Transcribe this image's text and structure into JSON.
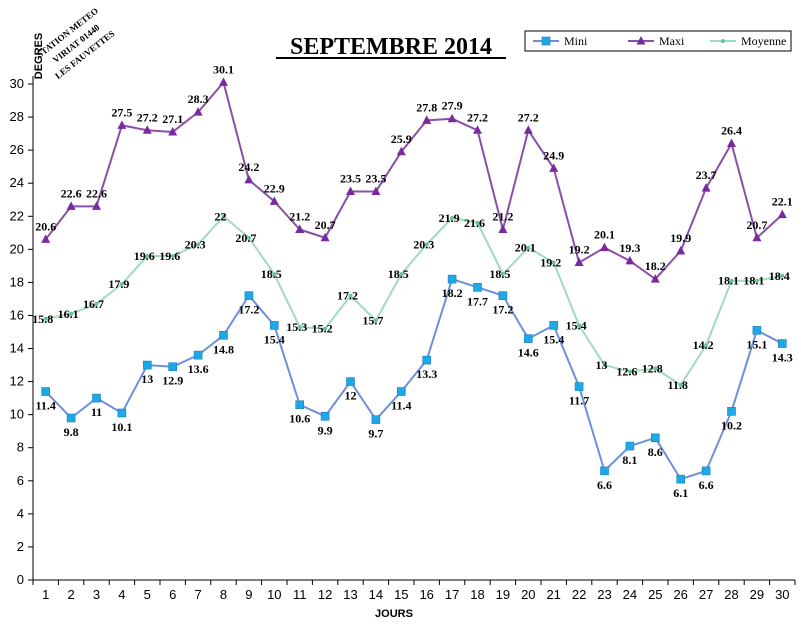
{
  "chart_data": {
    "type": "line",
    "title": "SEPTEMBRE 2014",
    "xlabel": "JOURS",
    "ylabel": "DEGRES",
    "ylim": [
      0,
      30
    ],
    "yticks": [
      0,
      2,
      4,
      6,
      8,
      10,
      12,
      14,
      16,
      18,
      20,
      22,
      24,
      26,
      28,
      30
    ],
    "x": [
      1,
      2,
      3,
      4,
      5,
      6,
      7,
      8,
      9,
      10,
      11,
      12,
      13,
      14,
      15,
      16,
      17,
      18,
      19,
      20,
      21,
      22,
      23,
      24,
      25,
      26,
      27,
      28,
      29,
      30
    ],
    "grid": false,
    "legend_position": "top-right",
    "series": [
      {
        "name": "Mini",
        "color": "#6f8fdc",
        "marker": "square",
        "marker_color": "#1ea9e6",
        "values": [
          11.4,
          9.8,
          11,
          10.1,
          13,
          12.9,
          13.6,
          14.8,
          17.2,
          15.4,
          10.6,
          9.9,
          12,
          9.7,
          11.4,
          13.3,
          18.2,
          17.7,
          17.2,
          14.6,
          15.4,
          11.7,
          6.6,
          8.1,
          8.6,
          6.1,
          6.6,
          10.2,
          15.1,
          14.3
        ]
      },
      {
        "name": "Maxi",
        "color": "#8a4fa8",
        "marker": "triangle",
        "marker_color": "#7a2a9e",
        "values": [
          20.6,
          22.6,
          22.6,
          27.5,
          27.2,
          27.1,
          28.3,
          30.1,
          24.2,
          22.9,
          21.2,
          20.7,
          23.5,
          23.5,
          25.9,
          27.8,
          27.9,
          27.2,
          21.2,
          27.2,
          24.9,
          19.2,
          20.1,
          19.3,
          18.2,
          19.9,
          23.7,
          26.4,
          20.7,
          22.1
        ]
      },
      {
        "name": "Moyenne",
        "color": "#9fdcbc",
        "marker": "dot",
        "marker_color": "#66c49a",
        "values": [
          15.8,
          16.1,
          16.7,
          17.9,
          19.6,
          19.6,
          20.3,
          22,
          20.7,
          18.5,
          15.3,
          15.2,
          17.2,
          15.7,
          18.5,
          20.3,
          21.9,
          21.6,
          18.5,
          20.1,
          19.2,
          15.4,
          13,
          12.6,
          12.8,
          11.8,
          14.2,
          18.1,
          18.1,
          18.4
        ]
      }
    ]
  },
  "stamp": {
    "line1": "STATION METEO",
    "line2": "VIRIAT 01440",
    "line3": "LES FAUVETTES"
  }
}
